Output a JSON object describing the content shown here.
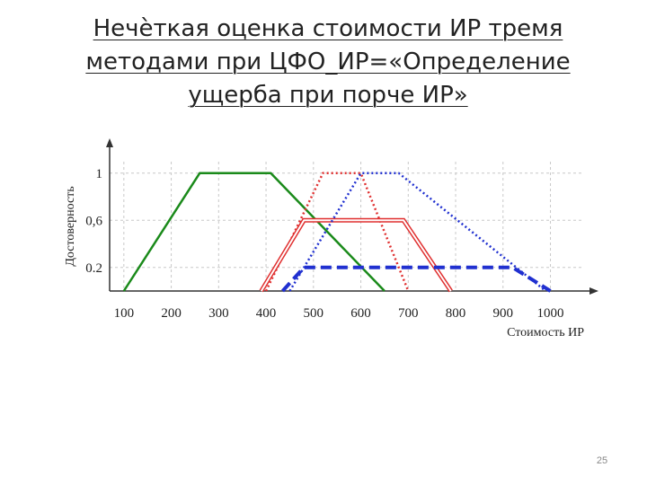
{
  "slide": {
    "title_lines": [
      "Нечѐткая оценка стоимости ИР тремя",
      "методами при ЦФО_ИР=«Определение",
      "ущерба при порче ИР»"
    ],
    "page_number": "25"
  },
  "chart_data": {
    "type": "line",
    "xlabel": "Стоимость ИР",
    "ylabel": "Достоверность",
    "x_ticks": [
      "100",
      "200",
      "300",
      "400",
      "500",
      "600",
      "700",
      "800",
      "900",
      "1000"
    ],
    "y_ticks": [
      "0.2",
      "0,6",
      "1"
    ],
    "xlim": [
      70,
      1090
    ],
    "ylim": [
      0,
      1.25
    ],
    "grid": true,
    "series": [
      {
        "color": "#1a8a1a",
        "style": "solid",
        "points": [
          [
            100,
            0
          ],
          [
            260,
            1
          ],
          [
            410,
            1
          ],
          [
            650,
            0
          ]
        ]
      },
      {
        "color": "#e03030",
        "style": "dotted",
        "points": [
          [
            400,
            0
          ],
          [
            520,
            1
          ],
          [
            600,
            1
          ],
          [
            700,
            0
          ]
        ]
      },
      {
        "color": "#e03030",
        "style": "double",
        "points": [
          [
            390,
            0
          ],
          [
            480,
            0.6
          ],
          [
            690,
            0.6
          ],
          [
            790,
            0
          ]
        ]
      },
      {
        "color": "#2030d0",
        "style": "dotted",
        "points": [
          [
            450,
            0
          ],
          [
            600,
            1
          ],
          [
            680,
            1
          ],
          [
            990,
            0
          ]
        ]
      },
      {
        "color": "#2030d0",
        "style": "dashed",
        "points": [
          [
            435,
            0
          ],
          [
            480,
            0.2
          ],
          [
            920,
            0.2
          ],
          [
            1000,
            0
          ]
        ]
      }
    ]
  }
}
